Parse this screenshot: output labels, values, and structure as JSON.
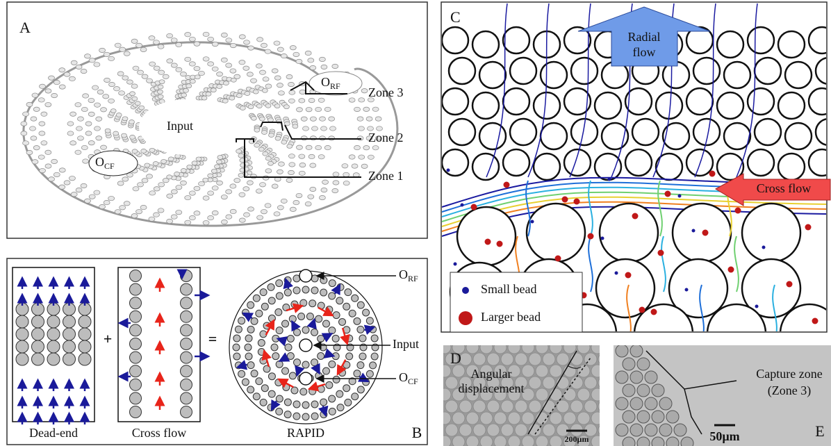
{
  "panel_a": {
    "label": "A",
    "input": "Input",
    "outlet_rf": {
      "main": "O",
      "sub": "RF"
    },
    "outlet_cf": {
      "main": "O",
      "sub": "CF"
    },
    "zones": [
      "Zone 3",
      "Zone 2",
      "Zone 1"
    ]
  },
  "panel_b": {
    "label": "B",
    "plus": "+",
    "equals": "=",
    "captions": [
      "Dead-end",
      "Cross flow",
      "RAPID"
    ],
    "outlet_rf": {
      "main": "O",
      "sub": "RF"
    },
    "input": "Input",
    "outlet_cf": {
      "main": "O",
      "sub": "CF"
    }
  },
  "panel_c": {
    "label": "C",
    "radial_flow": [
      "Radial",
      "flow"
    ],
    "cross_flow": "Cross flow",
    "legend": [
      "Small bead",
      "Larger bead"
    ]
  },
  "panel_d": {
    "label": "D",
    "annotation": [
      "Angular",
      "displacement"
    ],
    "scale_bar": "200µm"
  },
  "panel_e": {
    "label": "E",
    "annotation": [
      "Capture zone",
      "(Zone 3)"
    ],
    "scale_bar": "50µm"
  }
}
